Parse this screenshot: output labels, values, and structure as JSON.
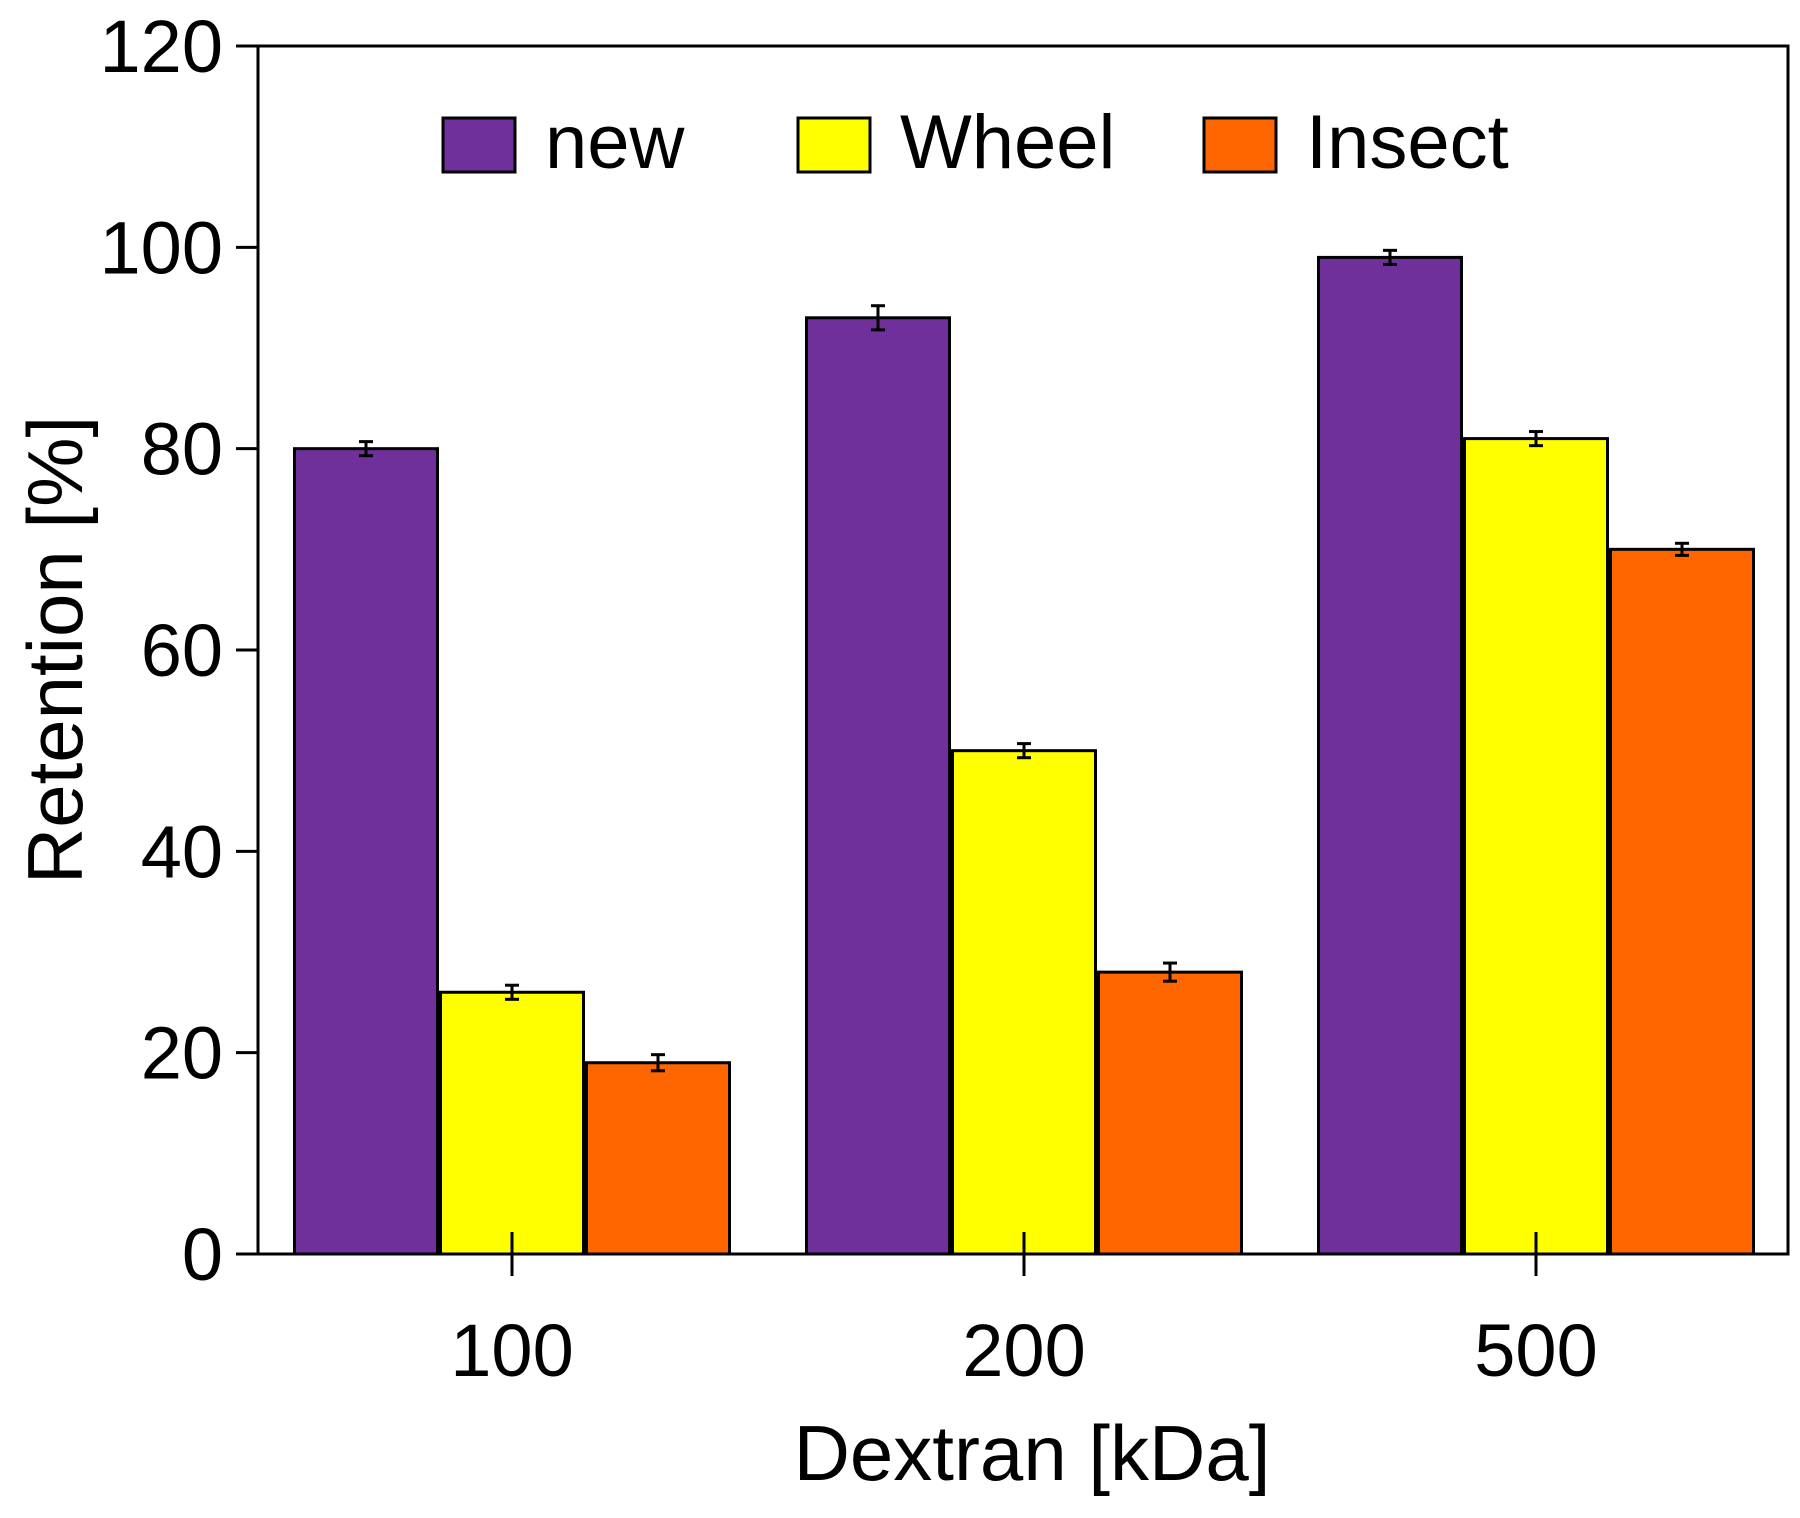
{
  "chart_data": {
    "type": "bar",
    "title": "",
    "xlabel": "Dextran [kDa]",
    "ylabel": "Retention [%]",
    "categories": [
      "100",
      "200",
      "500"
    ],
    "ylim": [
      0,
      120
    ],
    "yticks": [
      0,
      20,
      40,
      60,
      80,
      100,
      120
    ],
    "legend_position": "top",
    "series": [
      {
        "name": "new",
        "color": "#70309b",
        "values": [
          80,
          93,
          99
        ],
        "errors": [
          0.7,
          1.2,
          0.7
        ]
      },
      {
        "name": "Wheel",
        "color": "#ffff00",
        "values": [
          26,
          50,
          81
        ],
        "errors": [
          0.7,
          0.7,
          0.7
        ]
      },
      {
        "name": "Insect",
        "color": "#ff6600",
        "values": [
          19,
          28,
          70
        ],
        "errors": [
          0.8,
          0.9,
          0.6
        ]
      }
    ]
  }
}
